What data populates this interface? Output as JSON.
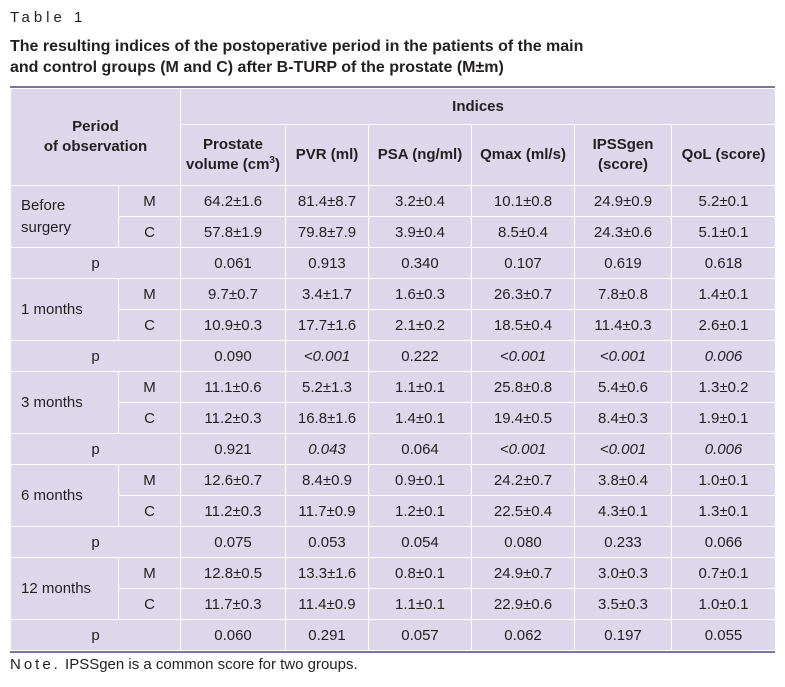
{
  "table_label": "Table 1",
  "caption": "The resulting indices of the postoperative period in the patients of the main and control groups (M and C) after B-TURP of the prostate (M±m)",
  "header": {
    "period": "Period of observation",
    "indices": "Indices",
    "columns": [
      "Prostate volume (cm3)",
      "PVR (ml)",
      "PSA (ng/ml)",
      "Qmax (ml/s)",
      "IPSSgen (score)",
      "QoL (score)"
    ]
  },
  "periods": [
    {
      "label": "Before surgery",
      "M": [
        "64.2±1.6",
        "81.4±8.7",
        "3.2±0.4",
        "10.1±0.8",
        "24.9±0.9",
        "5.2±0.1"
      ],
      "C": [
        "57.8±1.9",
        "79.8±7.9",
        "3.9±0.4",
        "8.5±0.4",
        "24.3±0.6",
        "5.1±0.1"
      ],
      "p": [
        "0.061",
        "0.913",
        "0.340",
        "0.107",
        "0.619",
        "0.618"
      ],
      "p_italic": [
        false,
        false,
        false,
        false,
        false,
        false
      ]
    },
    {
      "label": "1 months",
      "M": [
        "9.7±0.7",
        "3.4±1.7",
        "1.6±0.3",
        "26.3±0.7",
        "7.8±0.8",
        "1.4±0.1"
      ],
      "C": [
        "10.9±0.3",
        "17.7±1.6",
        "2.1±0.2",
        "18.5±0.4",
        "11.4±0.3",
        "2.6±0.1"
      ],
      "p": [
        "0.090",
        "<0.001",
        "0.222",
        "<0.001",
        "<0.001",
        "0.006"
      ],
      "p_italic": [
        false,
        true,
        false,
        true,
        true,
        true
      ]
    },
    {
      "label": "3 months",
      "M": [
        "11.1±0.6",
        "5.2±1.3",
        "1.1±0.1",
        "25.8±0.8",
        "5.4±0.6",
        "1.3±0.2"
      ],
      "C": [
        "11.2±0.3",
        "16.8±1.6",
        "1.4±0.1",
        "19.4±0.5",
        "8.4±0.3",
        "1.9±0.1"
      ],
      "p": [
        "0.921",
        "0.043",
        "0.064",
        "<0.001",
        "<0.001",
        "0.006"
      ],
      "p_italic": [
        false,
        true,
        false,
        true,
        true,
        true
      ]
    },
    {
      "label": "6 months",
      "M": [
        "12.6±0.7",
        "8.4±0.9",
        "0.9±0.1",
        "24.2±0.7",
        "3.8±0.4",
        "1.0±0.1"
      ],
      "C": [
        "11.2±0.3",
        "11.7±0.9",
        "1.2±0.1",
        "22.5±0.4",
        "4.3±0.1",
        "1.3±0.1"
      ],
      "p": [
        "0.075",
        "0.053",
        "0.054",
        "0.080",
        "0.233",
        "0.066"
      ],
      "p_italic": [
        false,
        false,
        false,
        false,
        false,
        false
      ]
    },
    {
      "label": "12 months",
      "M": [
        "12.8±0.5",
        "13.3±1.6",
        "0.8±0.1",
        "24.9±0.7",
        "3.0±0.3",
        "0.7±0.1"
      ],
      "C": [
        "11.7±0.3",
        "11.4±0.9",
        "1.1±0.1",
        "22.9±0.6",
        "3.5±0.3",
        "1.0±0.1"
      ],
      "p": [
        "0.060",
        "0.291",
        "0.057",
        "0.062",
        "0.197",
        "0.055"
      ],
      "p_italic": [
        false,
        false,
        false,
        false,
        false,
        false
      ]
    }
  ],
  "group_labels": {
    "M": "M",
    "C": "C",
    "p": "p"
  },
  "note": {
    "label": "Note.",
    "text": " IPSSgen is a common score for two groups."
  },
  "colors": {
    "table_bg": "#dcd7ea",
    "rule": "#7f72a6",
    "text": "#231f20"
  }
}
